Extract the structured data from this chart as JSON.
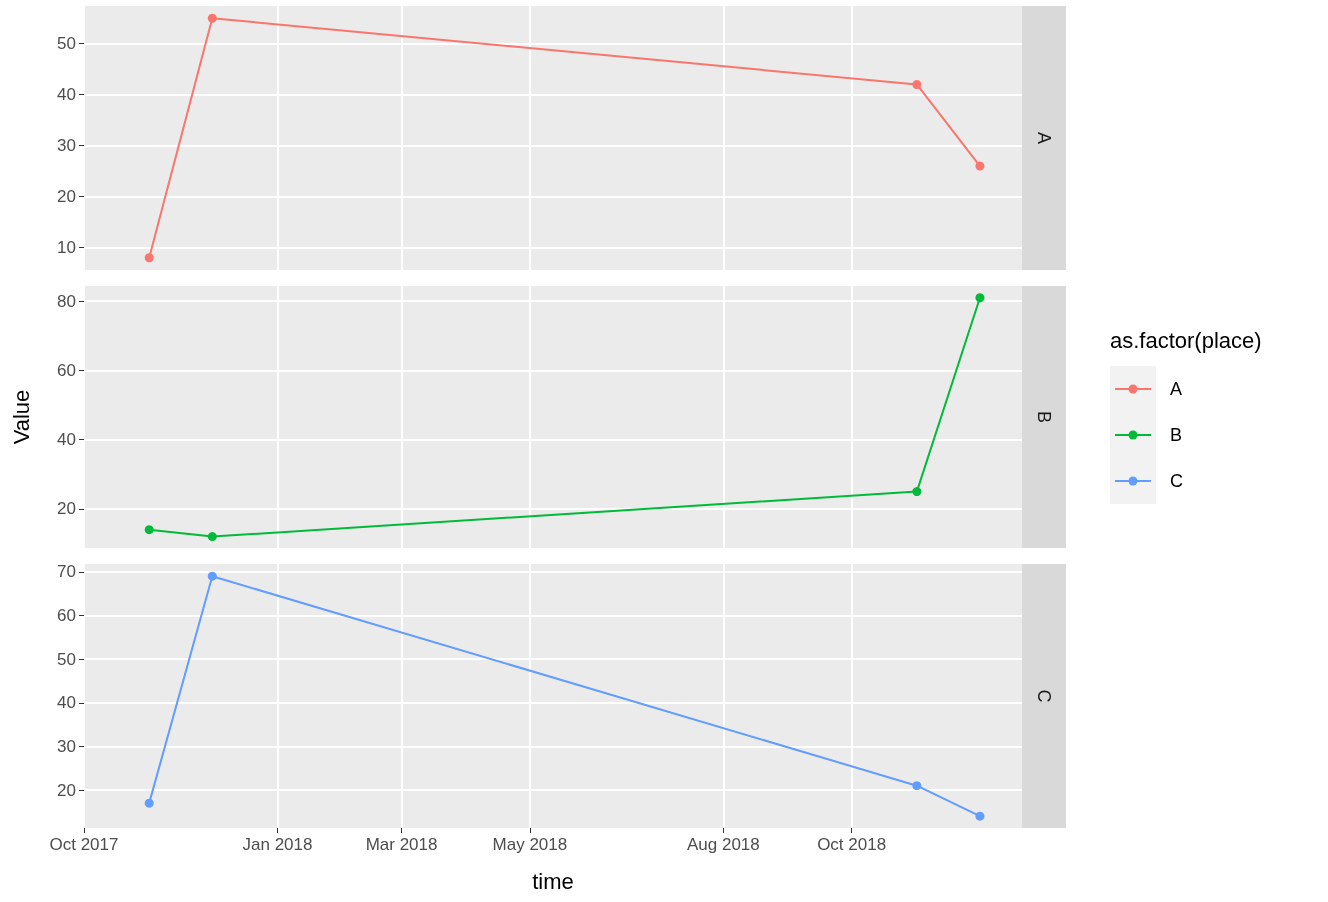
{
  "chart_data": [
    {
      "type": "line",
      "legend_title": "as.factor(place)",
      "legend": "right",
      "marker": "circle",
      "grid": true,
      "tick_labels": "y",
      "x": [
        "2017-11-01",
        "2017-12-01",
        "2018-11-01",
        "2018-12-01"
      ],
      "series": [
        {
          "name": "A",
          "color": "#f8766d",
          "values": [
            8,
            55,
            42,
            26
          ]
        }
      ],
      "xlim": [
        "2017-10-01",
        "2018-12-21"
      ],
      "ylim": [
        5.6,
        57.4
      ],
      "yticks": [
        10,
        20,
        30,
        40,
        50
      ]
    },
    {
      "type": "line",
      "ylabel": "Value",
      "legend": "right",
      "marker": "circle",
      "grid": true,
      "tick_labels": "y",
      "x": [
        "2017-11-01",
        "2017-12-01",
        "2018-11-01",
        "2018-12-01"
      ],
      "series": [
        {
          "name": "B",
          "color": "#00ba38",
          "values": [
            14,
            12,
            25,
            81
          ]
        }
      ],
      "xlim": [
        "2017-10-01",
        "2018-12-21"
      ],
      "ylim": [
        8.7,
        84.4
      ],
      "yticks": [
        20,
        40,
        60,
        80
      ]
    },
    {
      "type": "line",
      "xlabel": "time",
      "legend": "right",
      "marker": "circle",
      "grid": true,
      "x": [
        "2017-11-01",
        "2017-12-01",
        "2018-11-01",
        "2018-12-01"
      ],
      "series": [
        {
          "name": "C",
          "color": "#619cff",
          "values": [
            17,
            69,
            21,
            14
          ]
        }
      ],
      "xlim": [
        "2017-10-01",
        "2018-12-21"
      ],
      "ylim": [
        11.3,
        71.8
      ],
      "yticks": [
        20,
        30,
        40,
        50,
        60,
        70
      ],
      "xticks": [
        {
          "value": "2017-10-01",
          "label": "Oct 2017"
        },
        {
          "value": "2018-01-01",
          "label": "Jan 2018"
        },
        {
          "value": "2018-03-01",
          "label": "Mar 2018"
        },
        {
          "value": "2018-05-01",
          "label": "May 2018"
        },
        {
          "value": "2018-08-01",
          "label": "Aug 2018"
        },
        {
          "value": "2018-10-01",
          "label": "Oct 2018"
        }
      ]
    }
  ]
}
